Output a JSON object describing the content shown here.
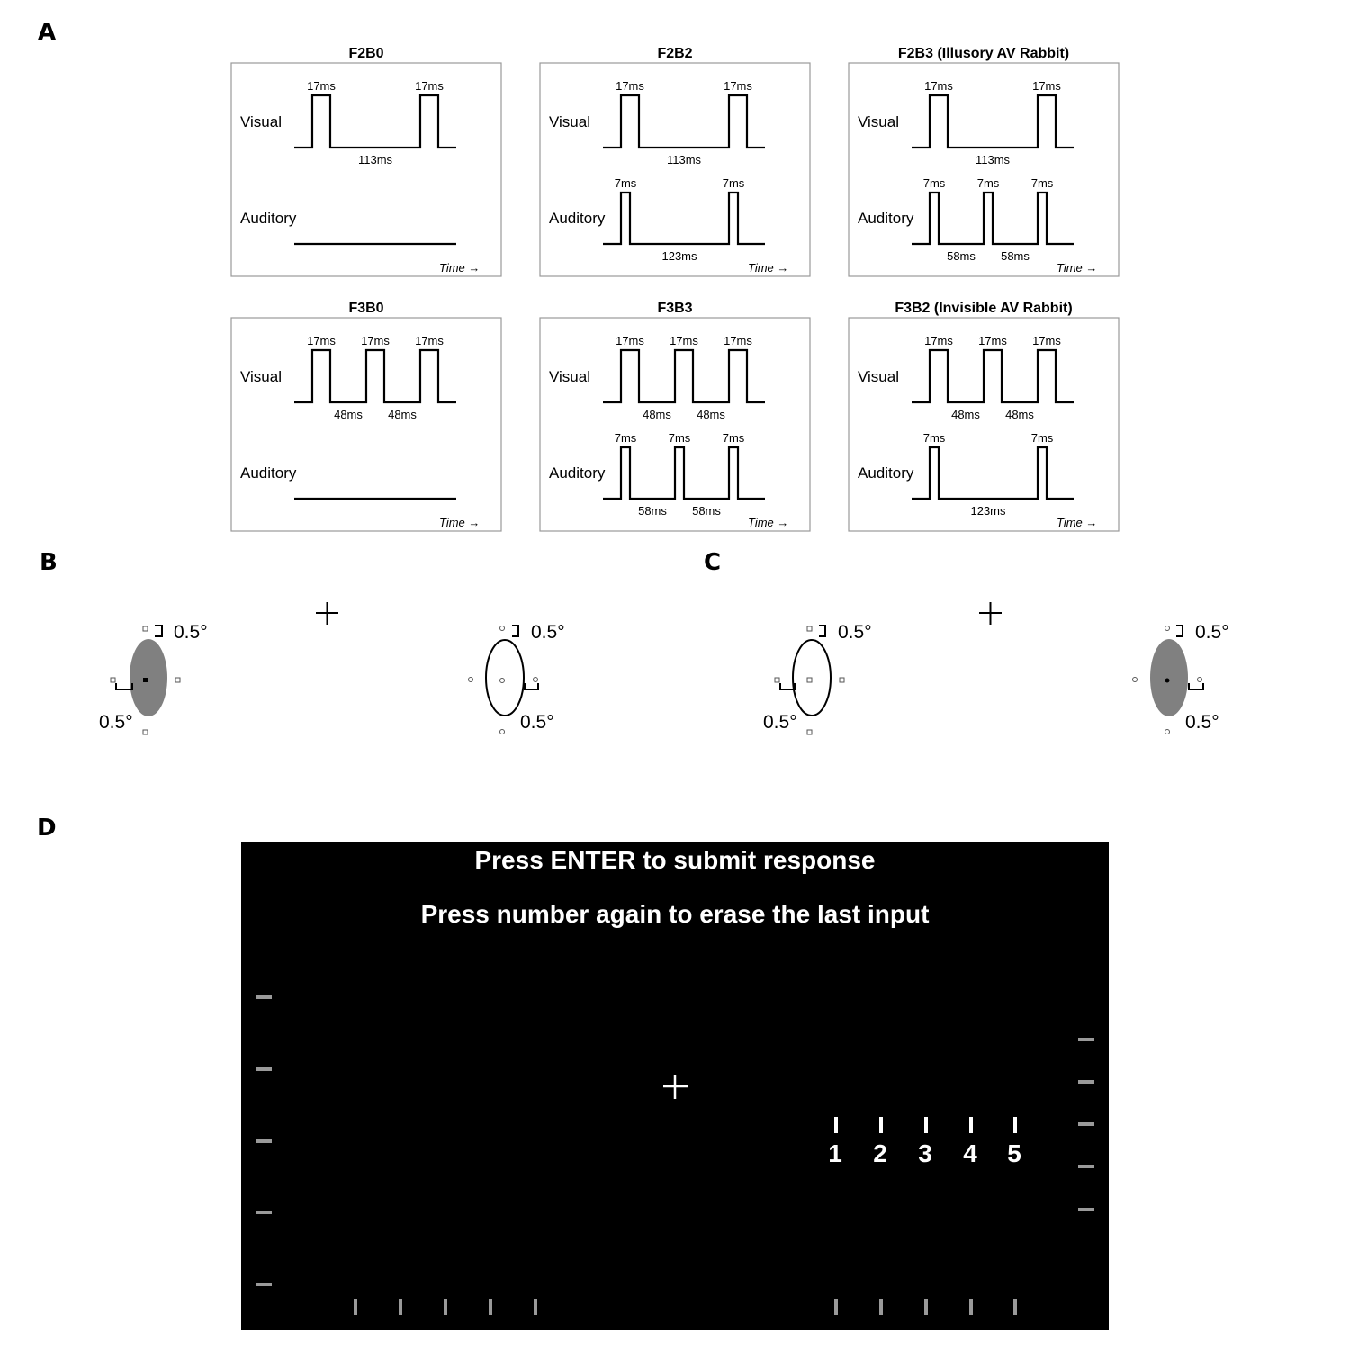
{
  "panel_labels": {
    "a": "A",
    "b": "B",
    "c": "C",
    "d": "D"
  },
  "panel_a": {
    "conditions": [
      {
        "title": "F2B0",
        "visual": {
          "label": "Visual",
          "pulses": 2,
          "pulse_labels": [
            "17ms",
            "17ms"
          ],
          "gap_labels": [
            "113ms"
          ]
        },
        "auditory": {
          "label": "Auditory",
          "pulses": 0,
          "pulse_labels": [],
          "gap_labels": []
        },
        "time_label": "Time →"
      },
      {
        "title": "F2B2",
        "visual": {
          "label": "Visual",
          "pulses": 2,
          "pulse_labels": [
            "17ms",
            "17ms"
          ],
          "gap_labels": [
            "113ms"
          ]
        },
        "auditory": {
          "label": "Auditory",
          "pulses": 2,
          "pulse_labels": [
            "7ms",
            "7ms"
          ],
          "gap_labels": [
            "123ms"
          ]
        },
        "time_label": "Time →"
      },
      {
        "title": "F2B3 (Illusory AV Rabbit)",
        "visual": {
          "label": "Visual",
          "pulses": 2,
          "pulse_labels": [
            "17ms",
            "17ms"
          ],
          "gap_labels": [
            "113ms"
          ]
        },
        "auditory": {
          "label": "Auditory",
          "pulses": 3,
          "pulse_labels": [
            "7ms",
            "7ms",
            "7ms"
          ],
          "gap_labels": [
            "58ms",
            "58ms"
          ]
        },
        "time_label": "Time →"
      },
      {
        "title": "F3B0",
        "visual": {
          "label": "Visual",
          "pulses": 3,
          "pulse_labels": [
            "17ms",
            "17ms",
            "17ms"
          ],
          "gap_labels": [
            "48ms",
            "48ms"
          ]
        },
        "auditory": {
          "label": "Auditory",
          "pulses": 0,
          "pulse_labels": [],
          "gap_labels": []
        },
        "time_label": "Time →"
      },
      {
        "title": "F3B3",
        "visual": {
          "label": "Visual",
          "pulses": 3,
          "pulse_labels": [
            "17ms",
            "17ms",
            "17ms"
          ],
          "gap_labels": [
            "48ms",
            "48ms"
          ]
        },
        "auditory": {
          "label": "Auditory",
          "pulses": 3,
          "pulse_labels": [
            "7ms",
            "7ms",
            "7ms"
          ],
          "gap_labels": [
            "58ms",
            "58ms"
          ]
        },
        "time_label": "Time →"
      },
      {
        "title": "F3B2 (Invisible AV Rabbit)",
        "visual": {
          "label": "Visual",
          "pulses": 3,
          "pulse_labels": [
            "17ms",
            "17ms",
            "17ms"
          ],
          "gap_labels": [
            "48ms",
            "48ms"
          ]
        },
        "auditory": {
          "label": "Auditory",
          "pulses": 2,
          "pulse_labels": [
            "7ms",
            "7ms"
          ],
          "gap_labels": [
            "123ms"
          ]
        },
        "time_label": "Time →"
      }
    ]
  },
  "panel_b": {
    "fixation": "+",
    "left_stimulus": {
      "filled": true,
      "markers": "square",
      "top_label": "0.5°",
      "bottom_label": "0.5°"
    },
    "right_stimulus": {
      "filled": false,
      "markers": "circle",
      "top_label": "0.5°",
      "bottom_label": "0.5°"
    }
  },
  "panel_c": {
    "fixation": "+",
    "left_stimulus": {
      "filled": false,
      "markers": "square",
      "top_label": "0.5°",
      "bottom_label": "0.5°"
    },
    "right_stimulus": {
      "filled": true,
      "markers": "circle",
      "top_label": "0.5°",
      "bottom_label": "0.5°"
    }
  },
  "panel_d": {
    "instruction_1": "Press ENTER to submit response",
    "instruction_2": "Press number again to erase the last input",
    "fixation": "+",
    "response_numbers": [
      "1",
      "2",
      "3",
      "4",
      "5"
    ],
    "colors": {
      "screen_background": "#000000",
      "text": "#ffffff",
      "tick_gray": "#9a9a9a"
    }
  }
}
